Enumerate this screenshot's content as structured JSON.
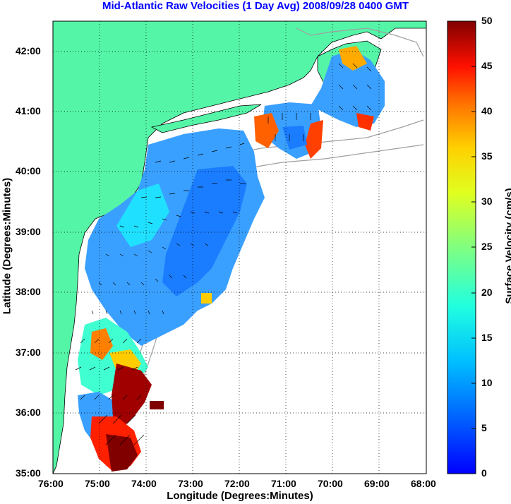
{
  "title": "Mid-Atlantic Raw Velocities (1 Day Avg) 2008/09/28 0400 GMT",
  "x_axis": {
    "label": "Longitude (Degrees:Minutes)",
    "ticks": [
      "76:00",
      "75:00",
      "74:00",
      "73:00",
      "72:00",
      "71:00",
      "70:00",
      "69:00",
      "68:00"
    ]
  },
  "y_axis": {
    "label": "Latitude (Degrees:Minutes)",
    "ticks": [
      "42:00",
      "41:00",
      "40:00",
      "39:00",
      "38:00",
      "37:00",
      "36:00",
      "35:00"
    ]
  },
  "colorbar": {
    "label": "Surface Velocity (cm/s)",
    "ticks": [
      "50",
      "45",
      "40",
      "35",
      "30",
      "25",
      "20",
      "15",
      "10",
      "5",
      "0"
    ],
    "range": [
      0,
      50
    ]
  },
  "colors": {
    "title": "#0000ff",
    "land": "#55f5a8",
    "grid": "#000000",
    "coastline": "#000000",
    "bathymetry": "#a0a0a0"
  },
  "map_extent": {
    "lon": [
      -76,
      -68
    ],
    "lat": [
      35,
      42.5
    ]
  }
}
